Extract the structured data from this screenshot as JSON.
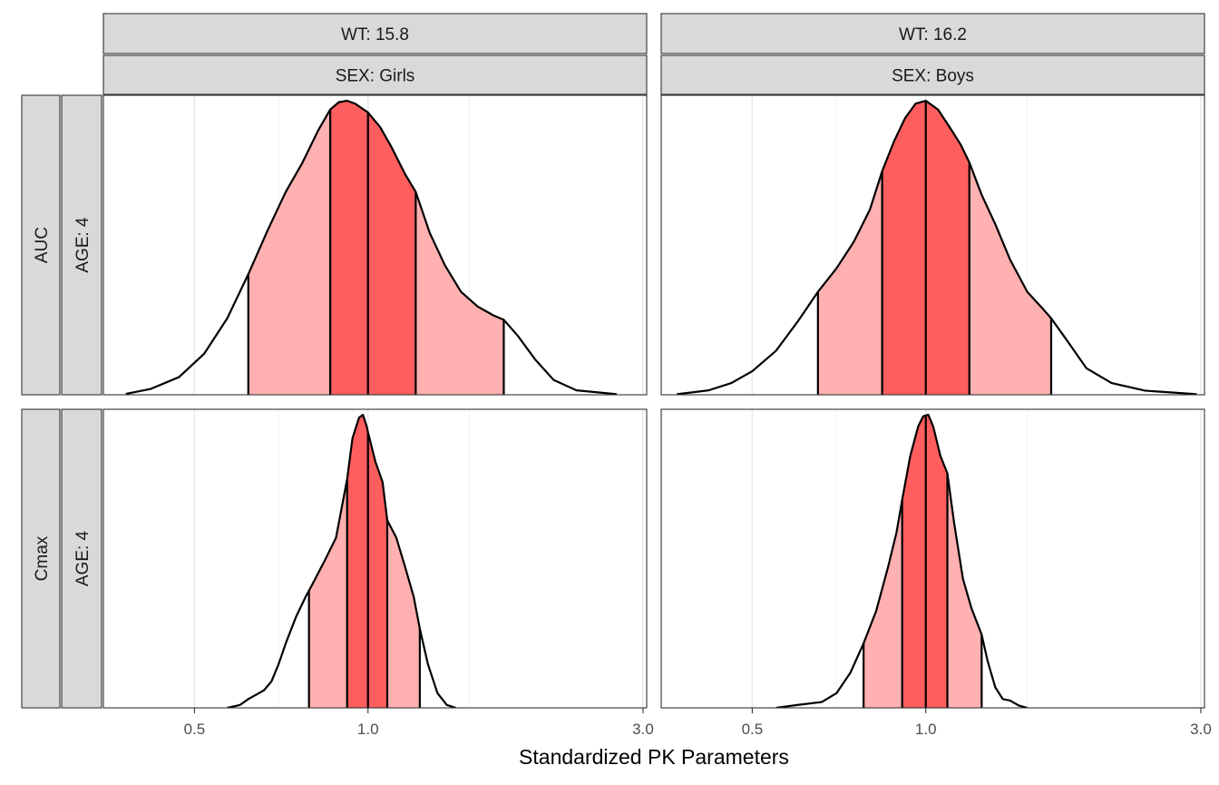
{
  "chart_data": {
    "type": "area",
    "xlabel": "Standardized PK Parameters",
    "x_scale": "log",
    "xlim": [
      0.35,
      3.0
    ],
    "x_ticks": [
      {
        "value": 0.5,
        "label": "0.5"
      },
      {
        "value": 1.0,
        "label": "1.0"
      },
      {
        "value": 3.0,
        "label": "3.0"
      }
    ],
    "x_minor_ticks": [
      0.7,
      1.5
    ],
    "grid": true,
    "legend": "none",
    "colors": {
      "outer_band": "#ffb0b0",
      "inner_band": "#ff5e5e",
      "line": "#000000"
    },
    "columns": [
      {
        "wt": "WT: 15.8",
        "sex": "SEX: Girls"
      },
      {
        "wt": "WT: 16.2",
        "sex": "SEX: Boys"
      }
    ],
    "rows": [
      {
        "param": "AUC",
        "age": "AGE: 4"
      },
      {
        "param": "Cmax",
        "age": "AGE: 4"
      }
    ],
    "panels": [
      {
        "row": 0,
        "col": 0,
        "quantiles": {
          "q05": 0.62,
          "q25": 0.86,
          "median": 1.0,
          "q75": 1.21,
          "q95": 1.72
        },
        "density": [
          [
            0.38,
            0.003
          ],
          [
            0.42,
            0.02
          ],
          [
            0.47,
            0.06
          ],
          [
            0.52,
            0.14
          ],
          [
            0.57,
            0.26
          ],
          [
            0.62,
            0.41
          ],
          [
            0.67,
            0.56
          ],
          [
            0.72,
            0.69
          ],
          [
            0.77,
            0.79
          ],
          [
            0.82,
            0.9
          ],
          [
            0.86,
            0.97
          ],
          [
            0.89,
            0.995
          ],
          [
            0.92,
            1.0
          ],
          [
            0.95,
            0.99
          ],
          [
            1.0,
            0.96
          ],
          [
            1.05,
            0.91
          ],
          [
            1.1,
            0.84
          ],
          [
            1.16,
            0.75
          ],
          [
            1.21,
            0.69
          ],
          [
            1.28,
            0.55
          ],
          [
            1.36,
            0.44
          ],
          [
            1.45,
            0.35
          ],
          [
            1.55,
            0.3
          ],
          [
            1.65,
            0.27
          ],
          [
            1.72,
            0.255
          ],
          [
            1.82,
            0.2
          ],
          [
            1.95,
            0.12
          ],
          [
            2.1,
            0.05
          ],
          [
            2.3,
            0.015
          ],
          [
            2.7,
            0.002
          ]
        ]
      },
      {
        "row": 0,
        "col": 1,
        "quantiles": {
          "q05": 0.65,
          "q25": 0.84,
          "median": 1.0,
          "q75": 1.19,
          "q95": 1.65
        },
        "density": [
          [
            0.37,
            0.002
          ],
          [
            0.42,
            0.015
          ],
          [
            0.46,
            0.04
          ],
          [
            0.5,
            0.08
          ],
          [
            0.55,
            0.15
          ],
          [
            0.6,
            0.25
          ],
          [
            0.65,
            0.35
          ],
          [
            0.7,
            0.43
          ],
          [
            0.75,
            0.52
          ],
          [
            0.8,
            0.63
          ],
          [
            0.84,
            0.76
          ],
          [
            0.88,
            0.86
          ],
          [
            0.92,
            0.94
          ],
          [
            0.96,
            0.99
          ],
          [
            1.0,
            1.0
          ],
          [
            1.05,
            0.97
          ],
          [
            1.1,
            0.91
          ],
          [
            1.15,
            0.85
          ],
          [
            1.19,
            0.79
          ],
          [
            1.25,
            0.68
          ],
          [
            1.32,
            0.58
          ],
          [
            1.4,
            0.46
          ],
          [
            1.5,
            0.35
          ],
          [
            1.6,
            0.29
          ],
          [
            1.65,
            0.26
          ],
          [
            1.75,
            0.19
          ],
          [
            1.9,
            0.09
          ],
          [
            2.1,
            0.04
          ],
          [
            2.4,
            0.014
          ],
          [
            2.95,
            0.002
          ]
        ]
      },
      {
        "row": 1,
        "col": 0,
        "quantiles": {
          "q05": 0.79,
          "q25": 0.92,
          "median": 1.0,
          "q75": 1.08,
          "q95": 1.23
        },
        "density": [
          [
            0.57,
            0.0
          ],
          [
            0.6,
            0.01
          ],
          [
            0.62,
            0.03
          ],
          [
            0.64,
            0.045
          ],
          [
            0.66,
            0.06
          ],
          [
            0.68,
            0.09
          ],
          [
            0.7,
            0.15
          ],
          [
            0.72,
            0.22
          ],
          [
            0.75,
            0.31
          ],
          [
            0.78,
            0.38
          ],
          [
            0.8,
            0.42
          ],
          [
            0.84,
            0.5
          ],
          [
            0.88,
            0.58
          ],
          [
            0.92,
            0.78
          ],
          [
            0.94,
            0.92
          ],
          [
            0.965,
            0.99
          ],
          [
            0.98,
            1.0
          ],
          [
            0.995,
            0.96
          ],
          [
            1.0,
            0.94
          ],
          [
            1.03,
            0.84
          ],
          [
            1.06,
            0.77
          ],
          [
            1.08,
            0.64
          ],
          [
            1.12,
            0.58
          ],
          [
            1.16,
            0.48
          ],
          [
            1.2,
            0.38
          ],
          [
            1.23,
            0.27
          ],
          [
            1.27,
            0.15
          ],
          [
            1.32,
            0.05
          ],
          [
            1.37,
            0.01
          ],
          [
            1.42,
            0.0
          ]
        ]
      },
      {
        "row": 1,
        "col": 1,
        "quantiles": {
          "q05": 0.78,
          "q25": 0.91,
          "median": 1.0,
          "q75": 1.09,
          "q95": 1.25
        },
        "density": [
          [
            0.55,
            0.0
          ],
          [
            0.6,
            0.01
          ],
          [
            0.66,
            0.02
          ],
          [
            0.7,
            0.05
          ],
          [
            0.74,
            0.12
          ],
          [
            0.78,
            0.22
          ],
          [
            0.82,
            0.33
          ],
          [
            0.86,
            0.48
          ],
          [
            0.89,
            0.6
          ],
          [
            0.91,
            0.71
          ],
          [
            0.94,
            0.86
          ],
          [
            0.97,
            0.96
          ],
          [
            0.99,
            0.995
          ],
          [
            1.01,
            1.0
          ],
          [
            1.03,
            0.96
          ],
          [
            1.06,
            0.86
          ],
          [
            1.09,
            0.8
          ],
          [
            1.12,
            0.63
          ],
          [
            1.16,
            0.44
          ],
          [
            1.2,
            0.34
          ],
          [
            1.25,
            0.25
          ],
          [
            1.28,
            0.16
          ],
          [
            1.32,
            0.07
          ],
          [
            1.36,
            0.03
          ],
          [
            1.4,
            0.025
          ],
          [
            1.45,
            0.008
          ],
          [
            1.5,
            0.0
          ]
        ]
      }
    ]
  }
}
